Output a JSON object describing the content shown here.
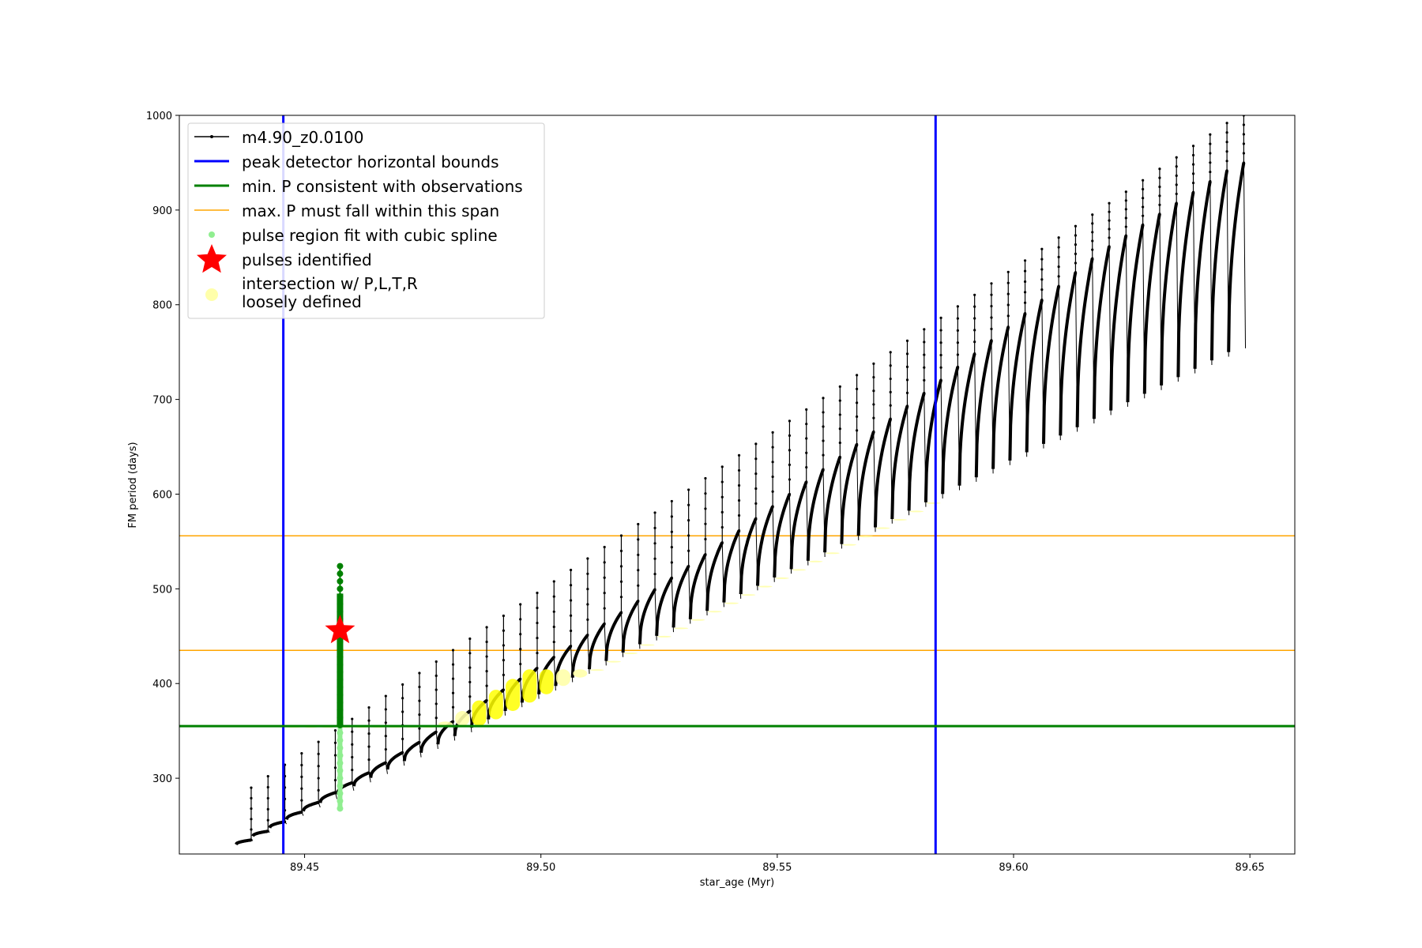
{
  "chart_data": {
    "type": "scatter",
    "title": "",
    "xlabel": "star_age (Myr)",
    "ylabel": "FM period (days)",
    "xlim": [
      89.4235,
      89.6595
    ],
    "ylim": [
      220,
      1000
    ],
    "x_ticks": [
      89.45,
      89.5,
      89.55,
      89.6,
      89.65
    ],
    "y_ticks": [
      300,
      400,
      500,
      600,
      700,
      800,
      900,
      1000
    ],
    "x_tick_labels": [
      "89.45",
      "89.50",
      "89.55",
      "89.60",
      "89.65"
    ],
    "y_tick_labels": [
      "300",
      "400",
      "500",
      "600",
      "700",
      "800",
      "900",
      "1000"
    ],
    "grid": false,
    "legend_position": "upper-left",
    "colors": {
      "track": "#000000",
      "bounds": "#0000ff",
      "min_p": "#008000",
      "max_p_span": "#ffa500",
      "spline_region": "#90ee90",
      "pulse": "#ff0000",
      "intersection": "#ffff00",
      "intersection_loose": "#ffffaa"
    },
    "track": {
      "name": "m4.90_z0.0100",
      "first_cycle_x": 89.4355,
      "last_cycle_x": 89.6455,
      "cycle_count": 60,
      "start_trough": 230,
      "end_trough": 750,
      "start_peak": 290,
      "peak_gain_per_myr": 3400,
      "peak_cap": 1000
    },
    "peak_detector_bounds": {
      "name": "peak detector horizontal bounds",
      "x": [
        89.4455,
        89.5835
      ]
    },
    "min_p": {
      "name": "min. P consistent with observations",
      "y": 355
    },
    "max_p_span": {
      "name": "max. P must fall within this span",
      "y": [
        435,
        556
      ]
    },
    "pulse_region_spline": {
      "name": "pulse region fit with cubic spline",
      "x": 89.4575,
      "y_range": [
        268,
        525
      ]
    },
    "pulses_identified": {
      "name": "pulses identified",
      "points": [
        {
          "x": 89.4575,
          "y": 456
        }
      ]
    },
    "intersection": {
      "name": "intersection w/ P,L,T,R",
      "name_line2": "loosely defined",
      "x_range": [
        89.4455,
        89.5835
      ],
      "y_min": 355
    }
  }
}
